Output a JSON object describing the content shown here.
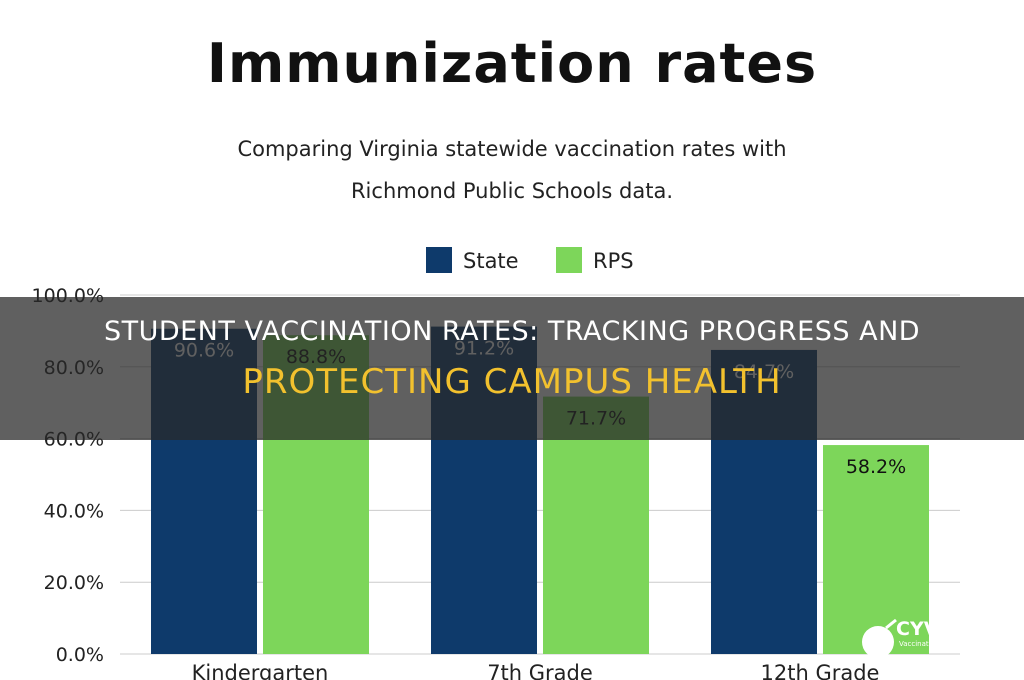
{
  "title": "Immunization rates",
  "subtitle_line1": "Comparing Virginia statewide vaccination rates with",
  "subtitle_line2": "Richmond Public Schools data.",
  "banner": {
    "line1": "STUDENT VACCINATION RATES: TRACKING PROGRESS AND",
    "line2": "PROTECTING CAMPUS HEALTH"
  },
  "watermark": {
    "text": "CYVA",
    "subtext": "Vaccinate to Pro..."
  },
  "colors": {
    "state": "#0e3a6b",
    "rps": "#7dd65a",
    "grid": "#cccccc",
    "banner_accent": "#f2c12e"
  },
  "chart_data": {
    "type": "bar",
    "categories": [
      "Kindergarten",
      "7th Grade",
      "12th Grade"
    ],
    "series": [
      {
        "name": "State",
        "values": [
          90.6,
          91.2,
          84.7
        ],
        "labels": [
          "90.6%",
          "91.2%",
          "84.7%"
        ]
      },
      {
        "name": "RPS",
        "values": [
          88.8,
          71.7,
          58.2
        ],
        "labels": [
          "88.8%",
          "71.7%",
          "58.2%"
        ]
      }
    ],
    "ylim": [
      0,
      100
    ],
    "yticks": [
      0,
      20,
      40,
      60,
      80,
      100
    ],
    "ytick_labels": [
      "0.0%",
      "20.0%",
      "40.0%",
      "60.0%",
      "80.0%",
      "100.0%"
    ],
    "legend": "top",
    "grid": true
  }
}
